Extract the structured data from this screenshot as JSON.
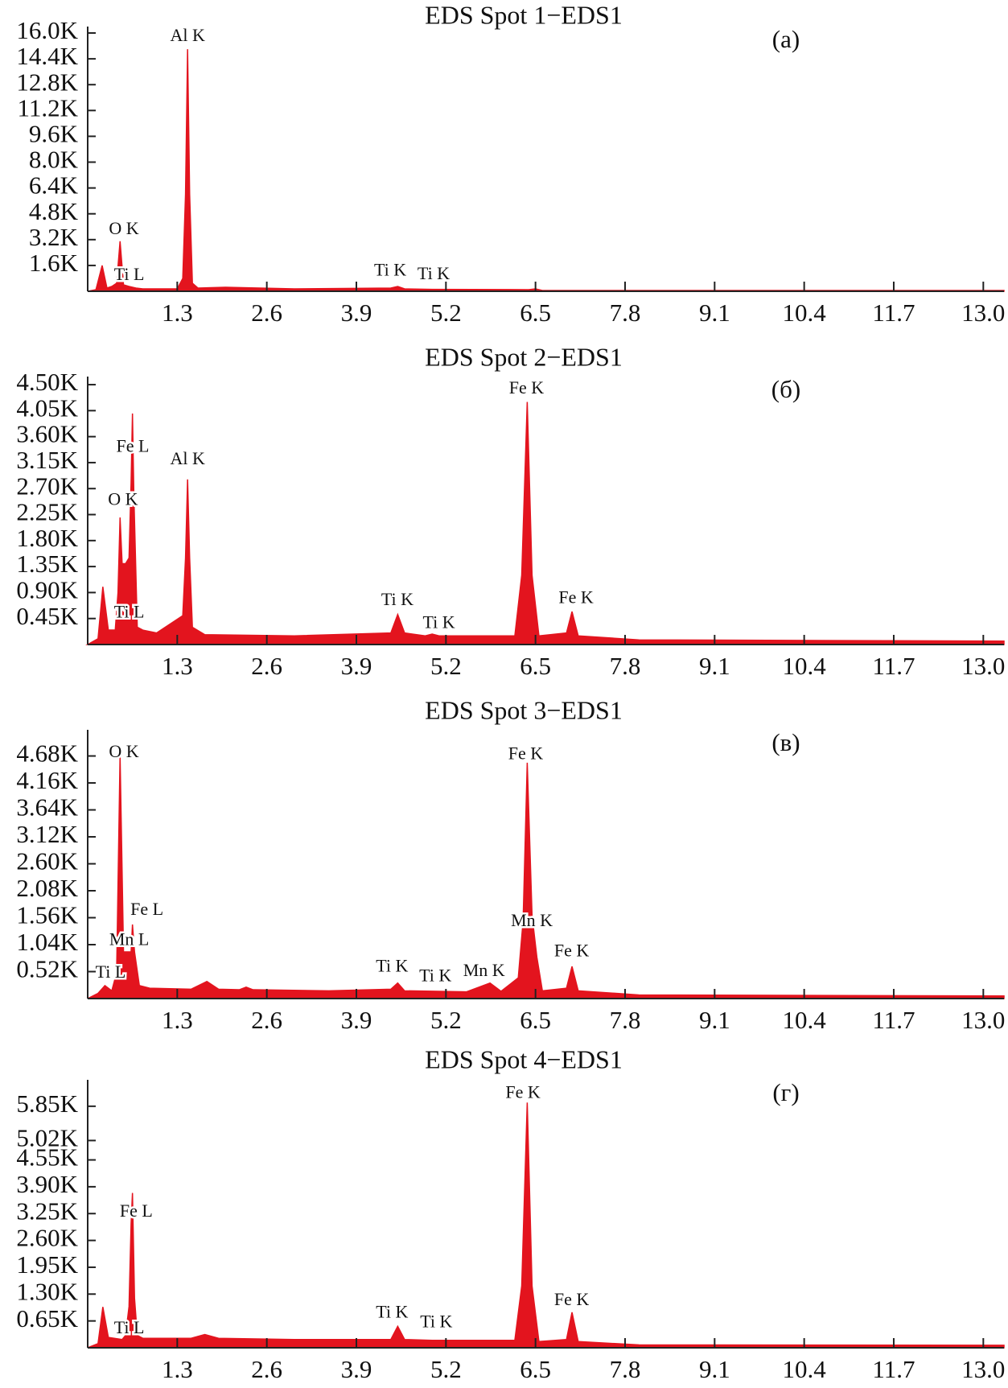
{
  "chart_data": [
    {
      "type": "area",
      "title": "EDS Spot 1−EDS1",
      "panel_label": "(a)",
      "x": [
        0,
        0.12,
        0.21,
        0.28,
        0.35,
        0.42,
        0.47,
        0.52,
        0.6,
        0.7,
        0.8,
        1.3,
        1.38,
        1.42,
        1.45,
        1.48,
        1.52,
        1.6,
        2.0,
        3.0,
        4.4,
        4.5,
        4.6,
        5.0,
        6.4,
        6.5,
        6.6,
        13.3
      ],
      "series": [
        {
          "color": "#e3141e",
          "values": [
            0,
            100,
            1600,
            200,
            300,
            500,
            3100,
            400,
            300,
            200,
            150,
            150,
            800,
            6000,
            15000,
            6000,
            500,
            200,
            250,
            150,
            200,
            300,
            150,
            120,
            100,
            150,
            50,
            50
          ]
        }
      ],
      "annotations": [
        "Al K",
        "O K",
        "Ti L",
        "Ti K",
        "Ti K"
      ],
      "xlim": [
        0,
        13.3
      ],
      "xticks": [
        1.3,
        2.6,
        3.9,
        5.2,
        6.5,
        7.8,
        9.1,
        10.4,
        11.7,
        {
          "value": 13.0,
          "label": "13.0"
        }
      ],
      "ylim": [
        0,
        16400
      ],
      "yticks": [
        {
          "value": 1600,
          "label": "1.6K"
        },
        {
          "value": 3200,
          "label": "3.2K"
        },
        {
          "value": 4800,
          "label": "4.8K"
        },
        {
          "value": 6400,
          "label": "6.4K"
        },
        {
          "value": 8000,
          "label": "8.0K"
        },
        {
          "value": 9600,
          "label": "9.6K"
        },
        {
          "value": 11200,
          "label": "11.2K"
        },
        {
          "value": 12800,
          "label": "12.8K"
        },
        {
          "value": 14400,
          "label": "14.4K"
        },
        {
          "value": 16000,
          "label": "16.0K"
        }
      ]
    },
    {
      "type": "area",
      "title": "EDS Spot 2−EDS1",
      "panel_label": "(б)",
      "x": [
        0,
        0.15,
        0.22,
        0.3,
        0.4,
        0.44,
        0.47,
        0.5,
        0.55,
        0.6,
        0.63,
        0.65,
        0.67,
        0.72,
        0.8,
        1.0,
        1.38,
        1.42,
        1.45,
        1.48,
        1.52,
        1.7,
        3.0,
        4.4,
        4.5,
        4.6,
        4.9,
        5.0,
        5.1,
        6.2,
        6.3,
        6.38,
        6.45,
        6.55,
        6.95,
        7.03,
        7.12,
        8.0,
        13.3
      ],
      "series": [
        {
          "color": "#e3141e",
          "values": [
            0,
            100,
            1000,
            250,
            250,
            900,
            2200,
            1400,
            1400,
            1500,
            2800,
            4000,
            2600,
            300,
            250,
            200,
            500,
            1500,
            2860,
            1500,
            300,
            170,
            150,
            200,
            520,
            200,
            150,
            180,
            150,
            150,
            1200,
            4200,
            1200,
            150,
            200,
            570,
            150,
            80,
            60
          ]
        }
      ],
      "annotations": [
        "Fe L",
        "Al K",
        "O K",
        "Ti L",
        "Ti K",
        "Ti K",
        "Fe K",
        "Fe K"
      ],
      "xlim": [
        0,
        13.3
      ],
      "xticks": [
        1.3,
        2.6,
        3.9,
        5.2,
        6.5,
        7.8,
        9.1,
        10.4,
        11.7,
        {
          "value": 13.0,
          "label": "13.0"
        }
      ],
      "ylim": [
        0,
        4640
      ],
      "yticks": [
        {
          "value": 450,
          "label": "0.45K"
        },
        {
          "value": 900,
          "label": "0.90K"
        },
        {
          "value": 1350,
          "label": "1.35K"
        },
        {
          "value": 1800,
          "label": "1.80K"
        },
        {
          "value": 2250,
          "label": "2.25K"
        },
        {
          "value": 2700,
          "label": "2.70K"
        },
        {
          "value": 3150,
          "label": "3.15K"
        },
        {
          "value": 3600,
          "label": "3.60K"
        },
        {
          "value": 4050,
          "label": "4.05K"
        },
        {
          "value": 4500,
          "label": "4.50K"
        }
      ]
    },
    {
      "type": "area",
      "title": "EDS Spot 3−EDS1",
      "panel_label": "(в)",
      "x": [
        0,
        0.15,
        0.25,
        0.35,
        0.42,
        0.47,
        0.52,
        0.58,
        0.63,
        0.65,
        0.68,
        0.75,
        0.9,
        1.5,
        1.73,
        1.9,
        2.2,
        2.3,
        2.4,
        3.5,
        4.4,
        4.5,
        4.6,
        5.5,
        5.84,
        6.0,
        6.25,
        6.32,
        6.38,
        6.45,
        6.52,
        6.6,
        6.95,
        7.03,
        7.12,
        8.0,
        13.3
      ],
      "series": [
        {
          "color": "#e3141e",
          "values": [
            0,
            100,
            250,
            150,
            500,
            4690,
            900,
            900,
            900,
            1430,
            900,
            250,
            200,
            180,
            330,
            180,
            170,
            220,
            170,
            150,
            180,
            300,
            150,
            130,
            300,
            140,
            400,
            1500,
            4550,
            1600,
            800,
            150,
            200,
            620,
            150,
            70,
            50
          ]
        }
      ],
      "annotations": [
        "O K",
        "Fe L",
        "Mn L",
        "Ti L",
        "Ti K",
        "Ti K",
        "Mn K",
        "Fe K",
        "Mn K",
        "Fe K"
      ],
      "xlim": [
        0,
        13.3
      ],
      "xticks": [
        1.3,
        2.6,
        3.9,
        5.2,
        6.5,
        7.8,
        9.1,
        10.4,
        11.7,
        {
          "value": 13.0,
          "label": "13.0"
        }
      ],
      "ylim": [
        0,
        5185
      ],
      "yticks": [
        {
          "value": 520,
          "label": "0.52K"
        },
        {
          "value": 1040,
          "label": "1.04K"
        },
        {
          "value": 1560,
          "label": "1.56K"
        },
        {
          "value": 2080,
          "label": "2.08K"
        },
        {
          "value": 2600,
          "label": "2.60K"
        },
        {
          "value": 3120,
          "label": "3.12K"
        },
        {
          "value": 3640,
          "label": "3.64K"
        },
        {
          "value": 4160,
          "label": "4.16K"
        },
        {
          "value": 4680,
          "label": "4.68K"
        }
      ]
    },
    {
      "type": "area",
      "title": "EDS Spot 4−EDS1",
      "panel_label": "(г)",
      "x": [
        0,
        0.15,
        0.22,
        0.3,
        0.5,
        0.55,
        0.6,
        0.63,
        0.65,
        0.68,
        0.72,
        0.8,
        1.5,
        1.7,
        1.9,
        3.0,
        4.4,
        4.5,
        4.6,
        5.0,
        6.2,
        6.3,
        6.38,
        6.45,
        6.55,
        6.95,
        7.03,
        7.12,
        8.0,
        13.3
      ],
      "series": [
        {
          "color": "#e3141e",
          "values": [
            0,
            100,
            990,
            250,
            200,
            300,
            1000,
            3000,
            3750,
            1200,
            300,
            230,
            230,
            320,
            230,
            200,
            200,
            520,
            200,
            180,
            180,
            1500,
            5940,
            1500,
            150,
            200,
            860,
            150,
            70,
            60
          ]
        }
      ],
      "annotations": [
        "Fe L",
        "Ti L",
        "Ti K",
        "Ti K",
        "Fe K",
        "Fe K"
      ],
      "xlim": [
        0,
        13.3
      ],
      "xticks": [
        1.3,
        2.6,
        3.9,
        5.2,
        6.5,
        7.8,
        9.1,
        10.4,
        11.7,
        {
          "value": 13.0,
          "label": "13.0"
        }
      ],
      "ylim": [
        0,
        6490
      ],
      "yticks": [
        {
          "value": 650,
          "label": "0.65K"
        },
        {
          "value": 1300,
          "label": "1.30K"
        },
        {
          "value": 1950,
          "label": "1.95K"
        },
        {
          "value": 2600,
          "label": "2.60K"
        },
        {
          "value": 3250,
          "label": "3.25K"
        },
        {
          "value": 3900,
          "label": "3.90K"
        },
        {
          "value": 4550,
          "label": "4.55K"
        },
        {
          "value": 5020,
          "label": "5.02K"
        },
        {
          "value": 5850,
          "label": "5.85K"
        }
      ]
    }
  ]
}
